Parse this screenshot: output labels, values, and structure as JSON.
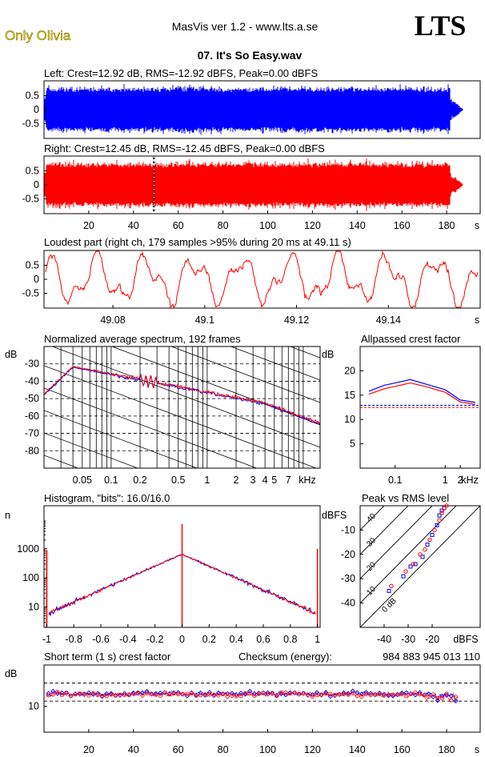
{
  "header": {
    "badge": "Only Olivia",
    "app_title": "MasVis ver 1.2 - www.lts.a.se",
    "logo": "LTS",
    "file_title": "07. It's So Easy.wav"
  },
  "colors": {
    "left": "#0000ff",
    "right": "#ff0000",
    "badge": "#e8d200"
  },
  "chart_data": [
    {
      "type": "line",
      "name": "left-waveform",
      "title": "Left: Crest=12.92 dB, RMS=-12.92 dBFS, Peak=0.00 dBFS",
      "y_ticks": [
        "0.5",
        "0",
        "-0.5"
      ],
      "x_ticks": [],
      "ylim": [
        -1,
        1
      ],
      "xlim": [
        0,
        195
      ],
      "envelope_end_s": 181.5
    },
    {
      "type": "line",
      "name": "right-waveform",
      "title": "Right: Crest=12.45 dB, RMS=-12.45 dBFS, Peak=0.00 dBFS",
      "y_ticks": [
        "0.5",
        "0",
        "-0.5"
      ],
      "x_ticks": [
        "20",
        "40",
        "60",
        "80",
        "100",
        "120",
        "140",
        "160",
        "180",
        "s"
      ],
      "ylim": [
        -1,
        1
      ],
      "xlim": [
        0,
        195
      ],
      "loudest_marker_s": 49.11
    },
    {
      "type": "line",
      "name": "loudest-part",
      "title": "Loudest part (right ch, 179 samples >95% during 20 ms at 49.11 s)",
      "y_ticks": [
        "0.5",
        "0",
        "-0.5"
      ],
      "x_ticks": [
        "49.08",
        "49.1",
        "49.12",
        "49.14",
        "s"
      ],
      "xlim": [
        49.065,
        49.16
      ],
      "ylim": [
        -1,
        1
      ]
    },
    {
      "type": "line",
      "name": "spectrum",
      "title": "Normalized average spectrum, 192 frames",
      "ylabel": "dB",
      "y_ticks": [
        "-30",
        "-40",
        "-50",
        "-60",
        "-70",
        "-80"
      ],
      "x_ticks": [
        "0.05",
        "0.1",
        "0.2",
        "0.5",
        "1",
        "2",
        "3",
        "4",
        "5",
        "7",
        "kHz"
      ],
      "xscale": "log",
      "ylim": [
        -90,
        -20
      ]
    },
    {
      "type": "line",
      "name": "allpassed-crest",
      "title": "Allpassed crest factor",
      "ylabel": "dB",
      "y_ticks": [
        "20",
        "15",
        "10",
        "5"
      ],
      "x_ticks": [
        "0.1",
        "1",
        "2",
        "kHz"
      ],
      "xscale": "log",
      "ylim": [
        0,
        25
      ],
      "series": [
        {
          "name": "left",
          "x": [
            0.03,
            0.06,
            0.1,
            0.2,
            0.4,
            1,
            2,
            4
          ],
          "values": [
            15.8,
            17.0,
            17.5,
            18.2,
            17.3,
            16.1,
            14.0,
            13.5
          ]
        },
        {
          "name": "right",
          "x": [
            0.03,
            0.06,
            0.1,
            0.2,
            0.4,
            1,
            2,
            4
          ],
          "values": [
            15.2,
            16.3,
            16.8,
            17.5,
            16.8,
            15.6,
            13.6,
            13.1
          ]
        }
      ],
      "reference_lines": [
        12.92,
        12.45
      ]
    },
    {
      "type": "line",
      "name": "histogram",
      "title": "Histogram, \"bits\": 16.0/16.0",
      "ylabel": "n",
      "y_ticks": [
        "1000",
        "100",
        "10"
      ],
      "x_ticks": [
        "-1",
        "-0.8",
        "-0.6",
        "-0.4",
        "-0.2",
        "0",
        "0.2",
        "0.4",
        "0.6",
        "0.8",
        "1"
      ],
      "yscale": "log",
      "xlim": [
        -1.02,
        1.02
      ]
    },
    {
      "type": "scatter",
      "name": "peak-vs-rms",
      "title": "Peak vs RMS level",
      "ylabel": "dBFS",
      "xlabel": "dBFS",
      "y_ticks": [
        "-10",
        "-20",
        "-30",
        "-40"
      ],
      "x_ticks": [
        "-40",
        "-30",
        "-20"
      ],
      "diagonal_labels": [
        "40",
        "30",
        "20",
        "10",
        "0 dB"
      ],
      "xlim": [
        -50,
        0
      ],
      "ylim": [
        -50,
        0
      ],
      "series": [
        {
          "name": "left",
          "x": [
            -38,
            -32,
            -29,
            -27,
            -24,
            -22,
            -20,
            -18,
            -17,
            -16,
            -15
          ],
          "y": [
            -35,
            -29,
            -25,
            -24,
            -21,
            -16,
            -12,
            -8,
            -4,
            -2,
            -1
          ]
        },
        {
          "name": "right",
          "x": [
            -37,
            -31,
            -28,
            -25,
            -23,
            -21,
            -19,
            -17,
            -16,
            -15,
            -14
          ],
          "y": [
            -33,
            -27,
            -24,
            -20,
            -18,
            -14,
            -10,
            -6,
            -3,
            -1,
            0
          ]
        }
      ]
    },
    {
      "type": "scatter",
      "name": "short-term-crest",
      "title": "Short term (1 s) crest factor",
      "checksum_label": "Checksum (energy):",
      "checksum_value": "984 883 945 013 110",
      "ylabel": "dB",
      "y_ticks": [
        "10"
      ],
      "x_ticks": [
        "20",
        "40",
        "60",
        "80",
        "100",
        "120",
        "140",
        "160",
        "180",
        "s"
      ],
      "xlim": [
        0,
        195
      ],
      "ylim": [
        5,
        18
      ],
      "reference_lines": [
        14.5,
        11
      ]
    }
  ]
}
